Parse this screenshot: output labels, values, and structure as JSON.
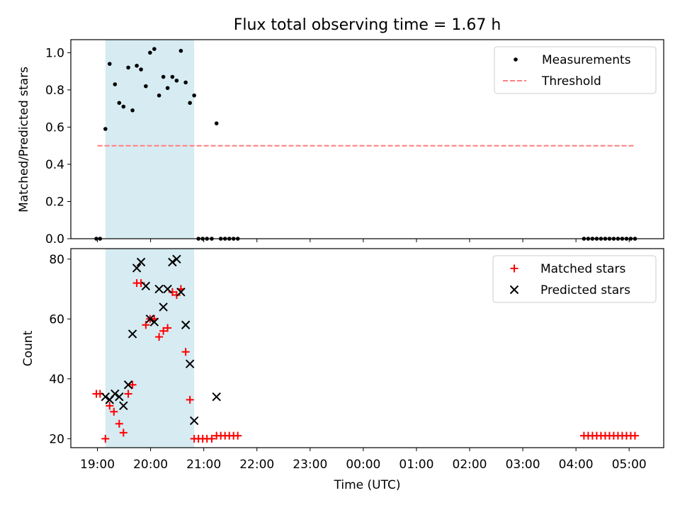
{
  "chart_data": {
    "type": "scatter",
    "title": "Flux total observing time = 1.67 h",
    "xlabel": "Time (UTC)",
    "x_unit": "hours since 19:00 UTC",
    "xlim": [
      -0.5,
      10.65
    ],
    "x_ticks": [
      {
        "value": 0,
        "label": "19:00"
      },
      {
        "value": 1,
        "label": "20:00"
      },
      {
        "value": 2,
        "label": "21:00"
      },
      {
        "value": 3,
        "label": "22:00"
      },
      {
        "value": 4,
        "label": "23:00"
      },
      {
        "value": 5,
        "label": "00:00"
      },
      {
        "value": 6,
        "label": "01:00"
      },
      {
        "value": 7,
        "label": "02:00"
      },
      {
        "value": 8,
        "label": "03:00"
      },
      {
        "value": 9,
        "label": "04:00"
      },
      {
        "value": 10,
        "label": "05:00"
      }
    ],
    "highlight_span": {
      "x0": 0.15,
      "x1": 1.82,
      "color": "#add8e6"
    },
    "panels": [
      {
        "id": "ratio",
        "ylabel": "Matched/Predicted stars",
        "ylim": [
          0.0,
          1.07
        ],
        "y_ticks": [
          0.0,
          0.2,
          0.4,
          0.6,
          0.8,
          1.0
        ],
        "y_tick_labels": [
          "0.0",
          "0.2",
          "0.4",
          "0.6",
          "0.8",
          "1.0"
        ],
        "legend": {
          "position": "upper right",
          "entries": [
            "Measurements",
            "Threshold"
          ]
        },
        "series": [
          {
            "name": "Measurements",
            "marker": "dot",
            "color": "#000000",
            "points": [
              [
                -0.02,
                0.0
              ],
              [
                0.05,
                0.0
              ],
              [
                0.15,
                0.59
              ],
              [
                0.23,
                0.94
              ],
              [
                0.33,
                0.83
              ],
              [
                0.41,
                0.73
              ],
              [
                0.49,
                0.71
              ],
              [
                0.58,
                0.92
              ],
              [
                0.66,
                0.69
              ],
              [
                0.74,
                0.93
              ],
              [
                0.82,
                0.91
              ],
              [
                0.91,
                0.82
              ],
              [
                0.99,
                1.0
              ],
              [
                1.07,
                1.02
              ],
              [
                1.16,
                0.77
              ],
              [
                1.24,
                0.87
              ],
              [
                1.32,
                0.81
              ],
              [
                1.41,
                0.87
              ],
              [
                1.49,
                0.85
              ],
              [
                1.57,
                1.01
              ],
              [
                1.66,
                0.84
              ],
              [
                1.74,
                0.73
              ],
              [
                1.82,
                0.77
              ],
              [
                1.9,
                0.0
              ],
              [
                1.98,
                0.0
              ],
              [
                2.06,
                0.0
              ],
              [
                2.15,
                0.0
              ],
              [
                2.24,
                0.62
              ],
              [
                2.32,
                0.0
              ],
              [
                2.4,
                0.0
              ],
              [
                2.48,
                0.0
              ],
              [
                2.56,
                0.0
              ],
              [
                2.64,
                0.0
              ],
              [
                9.15,
                0.0
              ],
              [
                9.23,
                0.0
              ],
              [
                9.31,
                0.0
              ],
              [
                9.39,
                0.0
              ],
              [
                9.47,
                0.0
              ],
              [
                9.55,
                0.0
              ],
              [
                9.63,
                0.0
              ],
              [
                9.71,
                0.0
              ],
              [
                9.79,
                0.0
              ],
              [
                9.87,
                0.0
              ],
              [
                9.95,
                0.0
              ],
              [
                10.03,
                0.0
              ],
              [
                10.11,
                0.0
              ]
            ]
          },
          {
            "name": "Threshold",
            "marker": "dashed-line",
            "color": "#ff7f7f",
            "points": [
              [
                0.0,
                0.5
              ],
              [
                10.1,
                0.5
              ]
            ]
          }
        ]
      },
      {
        "id": "counts",
        "ylabel": "Count",
        "ylim": [
          17,
          83.5
        ],
        "y_ticks": [
          20,
          40,
          60,
          80
        ],
        "y_tick_labels": [
          "20",
          "40",
          "60",
          "80"
        ],
        "legend": {
          "position": "upper right",
          "entries": [
            "Matched stars",
            "Predicted stars"
          ]
        },
        "series": [
          {
            "name": "Matched stars",
            "marker": "plus",
            "color": "#ff0000",
            "points": [
              [
                -0.02,
                35
              ],
              [
                0.05,
                35
              ],
              [
                0.15,
                20
              ],
              [
                0.23,
                31
              ],
              [
                0.31,
                29
              ],
              [
                0.41,
                25
              ],
              [
                0.49,
                22
              ],
              [
                0.58,
                35
              ],
              [
                0.66,
                38
              ],
              [
                0.74,
                72
              ],
              [
                0.82,
                72
              ],
              [
                0.91,
                58
              ],
              [
                0.99,
                60
              ],
              [
                1.07,
                60
              ],
              [
                1.16,
                54
              ],
              [
                1.24,
                56
              ],
              [
                1.32,
                57
              ],
              [
                1.41,
                69
              ],
              [
                1.49,
                68
              ],
              [
                1.57,
                70
              ],
              [
                1.66,
                49
              ],
              [
                1.74,
                33
              ],
              [
                1.82,
                20
              ],
              [
                1.9,
                20
              ],
              [
                1.98,
                20
              ],
              [
                2.06,
                20
              ],
              [
                2.15,
                20
              ],
              [
                2.24,
                21
              ],
              [
                2.32,
                21
              ],
              [
                2.4,
                21
              ],
              [
                2.48,
                21
              ],
              [
                2.56,
                21
              ],
              [
                2.64,
                21
              ],
              [
                9.15,
                21
              ],
              [
                9.23,
                21
              ],
              [
                9.31,
                21
              ],
              [
                9.39,
                21
              ],
              [
                9.47,
                21
              ],
              [
                9.55,
                21
              ],
              [
                9.63,
                21
              ],
              [
                9.71,
                21
              ],
              [
                9.79,
                21
              ],
              [
                9.87,
                21
              ],
              [
                9.95,
                21
              ],
              [
                10.03,
                21
              ],
              [
                10.11,
                21
              ]
            ]
          },
          {
            "name": "Predicted stars",
            "marker": "x",
            "color": "#000000",
            "points": [
              [
                0.15,
                34
              ],
              [
                0.23,
                33
              ],
              [
                0.33,
                35
              ],
              [
                0.41,
                34
              ],
              [
                0.49,
                31
              ],
              [
                0.58,
                38
              ],
              [
                0.66,
                55
              ],
              [
                0.74,
                77
              ],
              [
                0.82,
                79
              ],
              [
                0.91,
                71
              ],
              [
                0.99,
                60
              ],
              [
                1.07,
                59
              ],
              [
                1.16,
                70
              ],
              [
                1.24,
                64
              ],
              [
                1.32,
                70
              ],
              [
                1.41,
                79
              ],
              [
                1.49,
                80
              ],
              [
                1.57,
                69
              ],
              [
                1.66,
                58
              ],
              [
                1.74,
                45
              ],
              [
                1.82,
                26
              ],
              [
                2.24,
                34
              ]
            ]
          }
        ]
      }
    ]
  }
}
